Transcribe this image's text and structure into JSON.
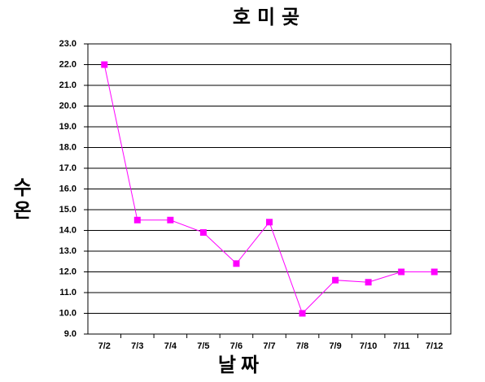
{
  "chart_data": {
    "type": "line",
    "title": "호미곶",
    "x_label": "날짜",
    "y_label": "수온",
    "categories": [
      "7/2",
      "7/3",
      "7/4",
      "7/5",
      "7/6",
      "7/7",
      "7/8",
      "7/9",
      "7/10",
      "7/11",
      "7/12"
    ],
    "series": [
      {
        "name": "수온",
        "color": "#ff00ff",
        "values": [
          22.0,
          14.5,
          14.5,
          13.9,
          12.4,
          14.4,
          10.0,
          11.6,
          11.5,
          12.0,
          12.0
        ]
      }
    ],
    "ylim": [
      9,
      23
    ],
    "yticks": [
      {
        "value": 9,
        "label": "9.0"
      },
      {
        "value": 10,
        "label": "10.0"
      },
      {
        "value": 11,
        "label": "11.0"
      },
      {
        "value": 12,
        "label": "12.0"
      },
      {
        "value": 13,
        "label": "13.0"
      },
      {
        "value": 14,
        "label": "14.0"
      },
      {
        "value": 15,
        "label": "15.0"
      },
      {
        "value": 16,
        "label": "16.0"
      },
      {
        "value": 17,
        "label": "17.0"
      },
      {
        "value": 18,
        "label": "18.0"
      },
      {
        "value": 19,
        "label": "19.0"
      },
      {
        "value": 20,
        "label": "20.0"
      },
      {
        "value": 21,
        "label": "21.0"
      },
      {
        "value": 22,
        "label": "22.0"
      },
      {
        "value": 23,
        "label": "23.0"
      }
    ],
    "grid": true
  }
}
